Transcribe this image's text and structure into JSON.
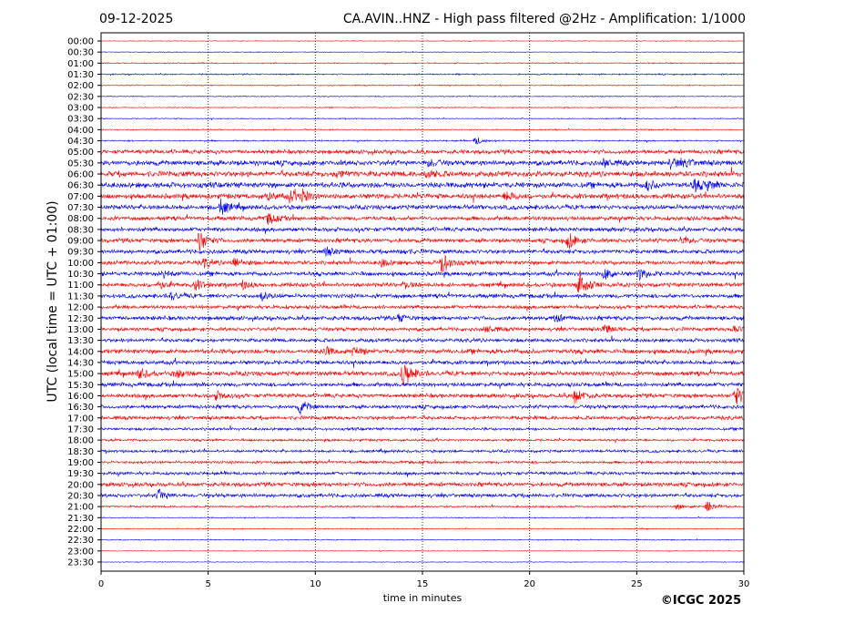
{
  "header": {
    "date": "09-12-2025",
    "title": "CA.AVIN..HNZ - High pass filtered @2Hz - Amplification: 1/1000"
  },
  "footer": {
    "copyright": "©ICGC 2025"
  },
  "chart_data": {
    "type": "line",
    "title": "CA.AVIN..HNZ - High pass filtered @2Hz - Amplification: 1/1000",
    "xlabel": "time in minutes",
    "ylabel": "UTC (local time = UTC + 01:00)",
    "xlim": [
      0,
      30
    ],
    "xticks": [
      "0",
      "5",
      "10",
      "15",
      "20",
      "25",
      "30"
    ],
    "xtick_values": [
      0,
      5,
      10,
      15,
      20,
      25,
      30
    ],
    "grid": "vertical dotted at x ticks",
    "colors": [
      "#ff0000",
      "#0000ff"
    ],
    "rows": [
      "00:00",
      "00:30",
      "01:00",
      "01:30",
      "02:00",
      "02:30",
      "03:00",
      "03:30",
      "04:00",
      "04:30",
      "05:00",
      "05:30",
      "06:00",
      "06:30",
      "07:00",
      "07:30",
      "08:00",
      "08:30",
      "09:00",
      "09:30",
      "10:00",
      "10:30",
      "11:00",
      "11:30",
      "12:00",
      "12:30",
      "13:00",
      "13:30",
      "14:00",
      "14:30",
      "15:00",
      "15:30",
      "16:00",
      "16:30",
      "17:00",
      "17:30",
      "18:00",
      "18:30",
      "19:00",
      "19:30",
      "20:00",
      "20:30",
      "21:00",
      "21:30",
      "22:00",
      "22:30",
      "23:00",
      "23:30"
    ],
    "noise_level": [
      0.3,
      0.3,
      0.5,
      0.6,
      0.5,
      0.4,
      0.4,
      0.4,
      0.5,
      0.6,
      1.8,
      2.2,
      2.4,
      2.4,
      2.2,
      2.0,
      1.8,
      1.8,
      1.8,
      1.8,
      1.8,
      1.8,
      1.8,
      1.8,
      1.6,
      1.8,
      1.6,
      1.6,
      2.0,
      1.8,
      2.0,
      1.8,
      1.8,
      1.6,
      1.6,
      1.2,
      1.0,
      1.2,
      1.2,
      1.4,
      1.8,
      1.6,
      0.8,
      0.4,
      0.4,
      0.4,
      0.3,
      0.3
    ],
    "events": [
      [
        9,
        17.5,
        4
      ],
      [
        11,
        15.3,
        4
      ],
      [
        11,
        23.5,
        4
      ],
      [
        11,
        26.6,
        5
      ],
      [
        11,
        27.3,
        4
      ],
      [
        12,
        11.0,
        4
      ],
      [
        12,
        15.2,
        4
      ],
      [
        13,
        25.5,
        5
      ],
      [
        13,
        27.7,
        6
      ],
      [
        13,
        28.3,
        4
      ],
      [
        14,
        7.8,
        4
      ],
      [
        14,
        8.8,
        5
      ],
      [
        14,
        9.4,
        6
      ],
      [
        14,
        18.9,
        5
      ],
      [
        15,
        5.6,
        8
      ],
      [
        16,
        7.8,
        6
      ],
      [
        18,
        4.6,
        11
      ],
      [
        18,
        21.8,
        9
      ],
      [
        18,
        27.1,
        5
      ],
      [
        19,
        10.5,
        4
      ],
      [
        19,
        14.0,
        3
      ],
      [
        20,
        15.9,
        12
      ],
      [
        20,
        4.8,
        5
      ],
      [
        20,
        6.2,
        5
      ],
      [
        20,
        13.1,
        4
      ],
      [
        21,
        2.9,
        4
      ],
      [
        21,
        23.5,
        6
      ],
      [
        21,
        25.1,
        6
      ],
      [
        22,
        22.3,
        18
      ],
      [
        22,
        4.4,
        5
      ],
      [
        22,
        2.7,
        4
      ],
      [
        22,
        6.6,
        4
      ],
      [
        22,
        14.2,
        3
      ],
      [
        23,
        3.3,
        4
      ],
      [
        23,
        7.5,
        4
      ],
      [
        25,
        13.9,
        4
      ],
      [
        25,
        21.2,
        4
      ],
      [
        26,
        23.5,
        5
      ],
      [
        26,
        29.5,
        4
      ],
      [
        26,
        18.0,
        4
      ],
      [
        28,
        10.4,
        5
      ],
      [
        28,
        11.8,
        5
      ],
      [
        30,
        14.1,
        15
      ],
      [
        30,
        1.8,
        5
      ],
      [
        30,
        3.5,
        4
      ],
      [
        32,
        22.1,
        9
      ],
      [
        32,
        29.6,
        11
      ],
      [
        32,
        5.4,
        4
      ],
      [
        33,
        9.3,
        7
      ],
      [
        41,
        2.7,
        6
      ],
      [
        42,
        28.3,
        7
      ],
      [
        42,
        26.9,
        3
      ]
    ]
  }
}
